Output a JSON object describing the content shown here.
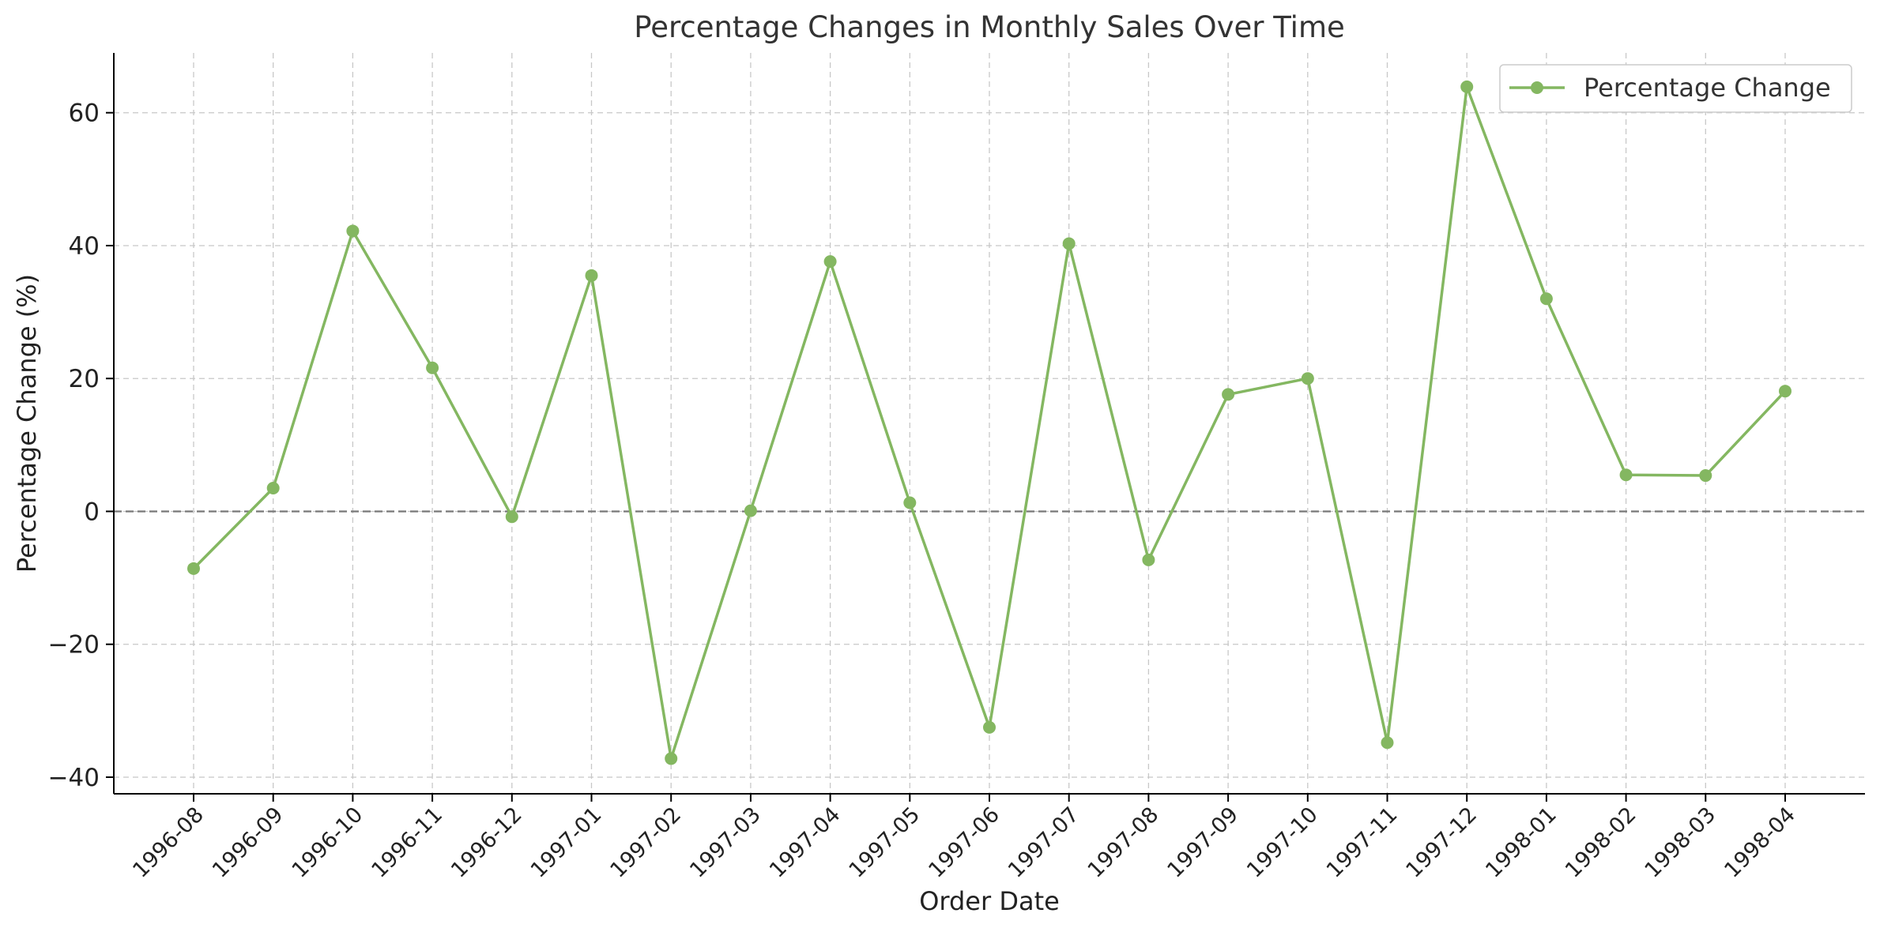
{
  "chart_data": {
    "type": "line",
    "title": "Percentage Changes in Monthly Sales Over Time",
    "xlabel": "Order Date",
    "ylabel": "Percentage Change (%)",
    "categories": [
      "1996-08",
      "1996-09",
      "1996-10",
      "1996-11",
      "1996-12",
      "1997-01",
      "1997-02",
      "1997-03",
      "1997-04",
      "1997-05",
      "1997-06",
      "1997-07",
      "1997-08",
      "1997-09",
      "1997-10",
      "1997-11",
      "1997-12",
      "1998-01",
      "1998-02",
      "1998-03",
      "1998-04"
    ],
    "series": [
      {
        "name": "Percentage Change",
        "color": "#84b761",
        "values": [
          -8.6,
          3.5,
          42.2,
          21.6,
          -0.8,
          35.5,
          -37.2,
          0.1,
          37.6,
          1.3,
          -32.5,
          40.3,
          -7.3,
          17.6,
          20.0,
          -34.8,
          63.9,
          32.0,
          5.5,
          5.4,
          18.1
        ]
      }
    ],
    "yticks": [
      -40,
      -20,
      0,
      20,
      40,
      60
    ],
    "ytick_labels": [
      "−40",
      "−20",
      "0",
      "20",
      "40",
      "60"
    ],
    "ylim": [
      -42.5,
      69
    ],
    "reference_line": {
      "y": 0,
      "style": "dashed",
      "color": "#777777"
    },
    "grid": true,
    "legend": "top-right"
  }
}
